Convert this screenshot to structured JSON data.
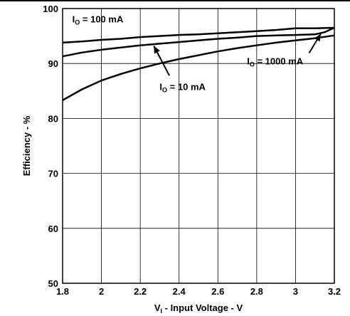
{
  "chart_data": {
    "type": "line",
    "xlabel": {
      "prefix": "V",
      "sub": "I",
      "rest": " - Input Voltage - V"
    },
    "ylabel": "Efficiency - %",
    "xlim": [
      1.8,
      3.2
    ],
    "ylim": [
      50,
      100
    ],
    "xticks": [
      "1.8",
      "2",
      "2.2",
      "2.4",
      "2.6",
      "2.8",
      "3",
      "3.2"
    ],
    "yticks": [
      "50",
      "60",
      "70",
      "80",
      "90",
      "100"
    ],
    "grid": true,
    "series": [
      {
        "name": "IO = 100 mA",
        "x": [
          1.8,
          1.9,
          2.0,
          2.1,
          2.2,
          2.3,
          2.4,
          2.5,
          2.6,
          2.7,
          2.8,
          2.9,
          3.0,
          3.1,
          3.2
        ],
        "y": [
          93.8,
          94.0,
          94.3,
          94.5,
          94.8,
          95.0,
          95.2,
          95.3,
          95.5,
          95.7,
          95.9,
          96.1,
          96.4,
          96.4,
          96.5
        ]
      },
      {
        "name": "IO = 1000 mA",
        "x": [
          1.8,
          1.9,
          2.0,
          2.1,
          2.2,
          2.3,
          2.4,
          2.5,
          2.6,
          2.7,
          2.8,
          2.9,
          3.0,
          3.1,
          3.15,
          3.2
        ],
        "y": [
          91.3,
          92.0,
          92.5,
          92.9,
          93.3,
          93.6,
          93.9,
          94.2,
          94.5,
          94.7,
          95.0,
          95.1,
          95.2,
          95.3,
          95.7,
          96.5
        ]
      },
      {
        "name": "IO = 10 mA",
        "x": [
          1.8,
          1.9,
          2.0,
          2.1,
          2.2,
          2.3,
          2.4,
          2.5,
          2.6,
          2.7,
          2.8,
          2.9,
          3.0,
          3.1,
          3.2
        ],
        "y": [
          83.3,
          85.3,
          86.9,
          88.1,
          89.1,
          90.0,
          90.8,
          91.5,
          92.2,
          92.8,
          93.3,
          93.8,
          94.2,
          94.6,
          95.1
        ]
      }
    ],
    "annotations": [
      {
        "prefix": "I",
        "sub": "O",
        "rest": " = 100 mA"
      },
      {
        "prefix": "I",
        "sub": "O",
        "rest": " = 1000 mA"
      },
      {
        "prefix": "I",
        "sub": "O",
        "rest": " = 10 mA"
      }
    ]
  }
}
